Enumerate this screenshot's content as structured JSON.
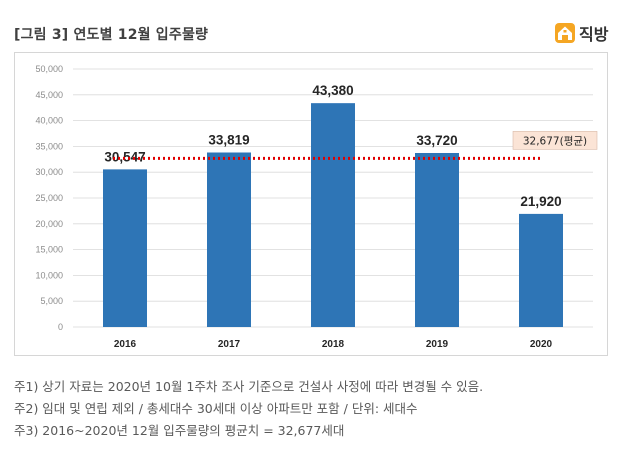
{
  "header": {
    "title": "[그림 3] 연도별 12월 입주물량",
    "logo_text": "직방"
  },
  "colors": {
    "bar": "#2e75b6",
    "average_line": "#e00000",
    "average_box": "#fbe4d6"
  },
  "chart_data": {
    "type": "bar",
    "categories": [
      "2016",
      "2017",
      "2018",
      "2019",
      "2020"
    ],
    "values": [
      30547,
      33819,
      43380,
      33720,
      21920
    ],
    "data_labels": [
      "30,547",
      "33,819",
      "43,380",
      "33,720",
      "21,920"
    ],
    "ylim": [
      0,
      50000
    ],
    "yticks": [
      0,
      5000,
      10000,
      15000,
      20000,
      25000,
      30000,
      35000,
      40000,
      45000,
      50000
    ],
    "ytick_labels": [
      "0",
      "5,000",
      "10,000",
      "15,000",
      "20,000",
      "25,000",
      "30,000",
      "35,000",
      "40,000",
      "45,000",
      "50,000"
    ],
    "grid": true,
    "average": {
      "value": 32677,
      "label": "32,677(평균)"
    }
  },
  "notes": [
    "주1) 상기 자료는 2020년 10월 1주차 조사 기준으로 건설사 사정에 따라 변경될 수 있음.",
    "주2) 임대 및 연립 제외 / 총세대수 30세대 이상 아파트만 포함 / 단위: 세대수",
    "주3) 2016~2020년 12월 입주물량의 평균치 = 32,677세대"
  ]
}
